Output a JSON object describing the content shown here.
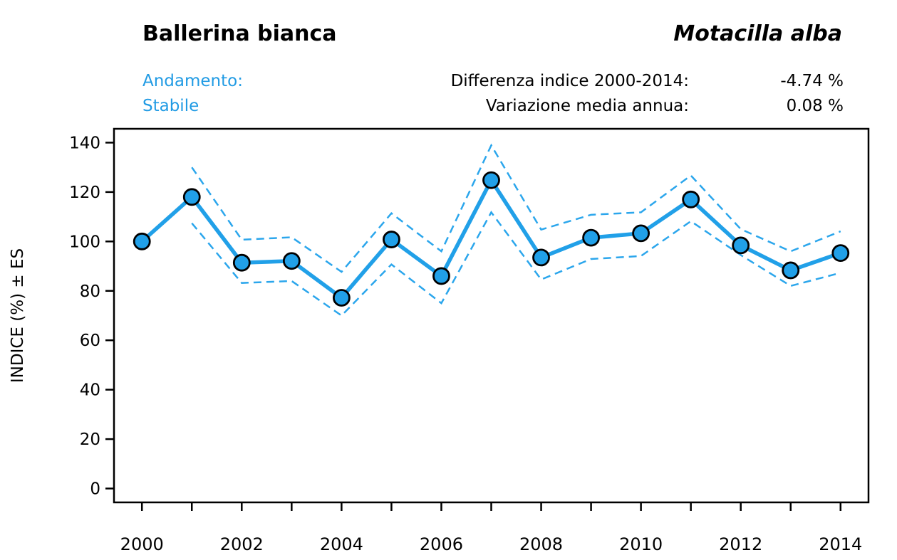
{
  "header": {
    "common_name": "Ballerina bianca",
    "scientific_name": "Motacilla alba",
    "trend_label": "Andamento:",
    "trend_value": "Stabile",
    "stats": [
      {
        "label": "Differenza indice 2000-2014:",
        "value": "-4.74 %"
      },
      {
        "label": "Variazione media annua:",
        "value": "0.08 %"
      }
    ]
  },
  "colors": {
    "accent_text_blue": "#219BE4",
    "line_blue": "#21A0E8",
    "band_blue": "#2BA6EC",
    "axis_black": "#000000"
  },
  "chart_data": {
    "type": "line",
    "title": "",
    "xlabel": "",
    "ylabel": "INDICE (%) ± ES",
    "x": [
      2000,
      2001,
      2002,
      2003,
      2004,
      2005,
      2006,
      2007,
      2008,
      2009,
      2010,
      2011,
      2012,
      2013,
      2014
    ],
    "series": [
      {
        "name": "indice",
        "values": [
          100,
          118,
          91.4,
          92.1,
          77.2,
          100.8,
          86,
          124.8,
          93.5,
          101.5,
          103.3,
          117,
          98.4,
          88.3,
          95.3
        ]
      },
      {
        "name": "upper-es",
        "values": [
          null,
          130,
          100.7,
          101.7,
          87.7,
          111.4,
          96,
          138.9,
          104.8,
          110.8,
          111.8,
          126.7,
          105,
          96,
          104.1
        ]
      },
      {
        "name": "lower-es",
        "values": [
          null,
          107.4,
          83.2,
          84,
          70,
          90.7,
          75,
          111.8,
          84.6,
          92.9,
          94.1,
          108.2,
          94.5,
          82,
          87.3
        ]
      }
    ],
    "ylim": [
      0,
      140
    ],
    "yticks": [
      0,
      20,
      40,
      60,
      80,
      100,
      120,
      140
    ],
    "xtick_labels": [
      2000,
      2002,
      2004,
      2006,
      2008,
      2010,
      2012,
      2014
    ],
    "grid": false,
    "legend": "none",
    "marker": "circle"
  }
}
